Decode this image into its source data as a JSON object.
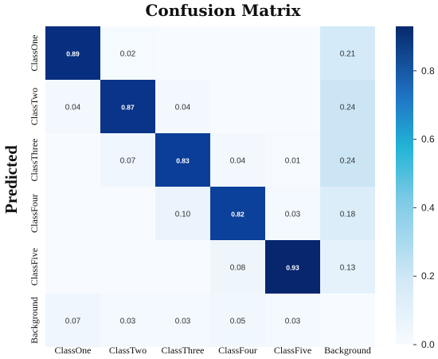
{
  "chart_data": {
    "type": "heatmap",
    "title": "Confusion Matrix",
    "ylabel": "Predicted",
    "xlabel": "",
    "x_categories": [
      "ClassOne",
      "ClassTwo",
      "ClassThree",
      "ClassFour",
      "ClassFive",
      "Background"
    ],
    "y_categories": [
      "ClassOne",
      "ClassTwo",
      "ClassThree",
      "ClassFour",
      "ClassFive",
      "Background"
    ],
    "values": [
      [
        0.89,
        0.02,
        null,
        null,
        null,
        0.21
      ],
      [
        0.04,
        0.87,
        0.04,
        null,
        null,
        0.24
      ],
      [
        null,
        0.07,
        0.83,
        0.04,
        0.01,
        0.24
      ],
      [
        null,
        null,
        0.1,
        0.82,
        0.03,
        0.18
      ],
      [
        null,
        null,
        null,
        0.08,
        0.93,
        0.13
      ],
      [
        0.07,
        0.03,
        0.03,
        0.05,
        0.03,
        null
      ]
    ],
    "colorbar": {
      "range": [
        0,
        0.93
      ],
      "ticks": [
        "0.0",
        "0.2",
        "0.4",
        "0.6",
        "0.8"
      ],
      "tick_values": [
        0.0,
        0.2,
        0.4,
        0.6,
        0.8
      ],
      "colormap": "Blues"
    },
    "grid": false,
    "legend": "colorbar-right"
  }
}
